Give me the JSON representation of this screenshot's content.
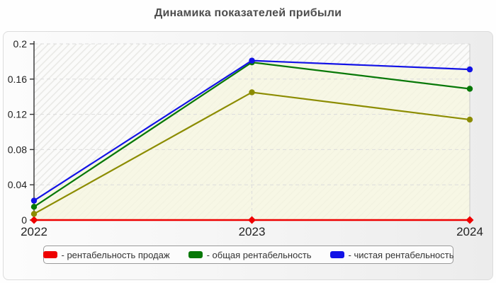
{
  "title": "Динамика показателей прибыли",
  "chart_data": {
    "type": "line",
    "categories": [
      "2022",
      "2023",
      "2024"
    ],
    "series": [
      {
        "name": "рентабельность продаж",
        "color": "#ee0000",
        "marker": "diamond",
        "line_width": 2.6,
        "values": [
          0,
          0,
          0
        ]
      },
      {
        "name": "",
        "color": "#8c8c00",
        "marker": "circle",
        "line_width": 2.2,
        "values": [
          0.007,
          0.145,
          0.114
        ]
      },
      {
        "name": "общая рентабельность",
        "color": "#077807",
        "marker": "circle",
        "line_width": 2.2,
        "values": [
          0.015,
          0.179,
          0.149
        ]
      },
      {
        "name": "чистая рентабельность",
        "color": "#1212e6",
        "marker": "circle",
        "line_width": 2.2,
        "values": [
          0.022,
          0.181,
          0.171
        ],
        "area_fill": "#f6f6df"
      }
    ],
    "ylim": [
      0,
      0.2
    ],
    "y_ticks": [
      0,
      0.04,
      0.08,
      0.12,
      0.16,
      0.2
    ],
    "grid": {
      "horizontal": "dashed",
      "vertical_at_categories": "dashed",
      "color": "#dcdcdc"
    },
    "plot_background": "diagonal-hatch",
    "axis_color": "#333333",
    "tick_label_color": "#222222",
    "legend_position": "bottom"
  },
  "legend": {
    "items": [
      {
        "label": "- рентабельность продаж",
        "color": "#ee0000"
      },
      {
        "label": "- общая рентабельность",
        "color": "#077807"
      },
      {
        "label": "- чистая рентабельность",
        "color": "#1212e6"
      }
    ]
  }
}
